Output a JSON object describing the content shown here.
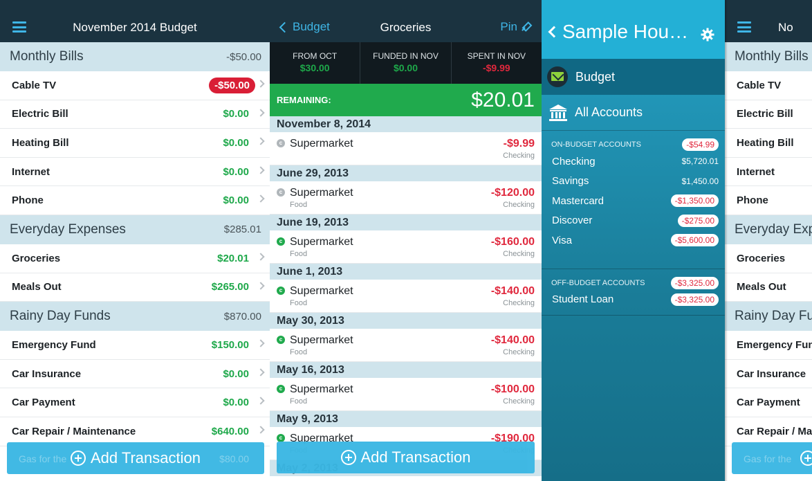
{
  "panel1": {
    "title": "November 2014 Budget",
    "groups": [
      {
        "name": "Monthly Bills",
        "amount": "-$50.00",
        "categories": [
          {
            "name": "Cable TV",
            "value": "-$50.00",
            "negative": true
          },
          {
            "name": "Electric Bill",
            "value": "$0.00"
          },
          {
            "name": "Heating Bill",
            "value": "$0.00"
          },
          {
            "name": "Internet",
            "value": "$0.00"
          },
          {
            "name": "Phone",
            "value": "$0.00"
          }
        ]
      },
      {
        "name": "Everyday Expenses",
        "amount": "$285.01",
        "categories": [
          {
            "name": "Groceries",
            "value": "$20.01"
          },
          {
            "name": "Meals Out",
            "value": "$265.00"
          }
        ]
      },
      {
        "name": "Rainy Day Funds",
        "amount": "$870.00",
        "categories": [
          {
            "name": "Emergency Fund",
            "value": "$150.00"
          },
          {
            "name": "Car Insurance",
            "value": "$0.00"
          },
          {
            "name": "Car Payment",
            "value": "$0.00"
          },
          {
            "name": "Car Repair / Maintenance",
            "value": "$640.00"
          }
        ]
      }
    ],
    "ghost_label": "Gas for the",
    "ghost_value": "$80.00",
    "add_label": "Add Transaction"
  },
  "panel2": {
    "back_label": "Budget",
    "title": "Groceries",
    "pin_label": "Pin",
    "summary": [
      {
        "label": "FROM OCT",
        "value": "$30.00",
        "color": "green"
      },
      {
        "label": "FUNDED IN NOV",
        "value": "$0.00",
        "color": "green"
      },
      {
        "label": "SPENT IN NOV",
        "value": "-$9.99",
        "color": "red"
      }
    ],
    "remaining_label": "REMAINING:",
    "remaining_value": "$20.01",
    "transactions": [
      {
        "date": "November 8, 2014",
        "payee": "Supermarket",
        "category": "",
        "amount": "-$9.99",
        "account": "Checking",
        "cleared": false
      },
      {
        "date": "June 29, 2013",
        "payee": "Supermarket",
        "category": "Food",
        "amount": "-$120.00",
        "account": "Checking",
        "cleared": false
      },
      {
        "date": "June 19, 2013",
        "payee": "Supermarket",
        "category": "Food",
        "amount": "-$160.00",
        "account": "Checking",
        "cleared": true
      },
      {
        "date": "June 1, 2013",
        "payee": "Supermarket",
        "category": "Food",
        "amount": "-$140.00",
        "account": "Checking",
        "cleared": true
      },
      {
        "date": "May 30, 2013",
        "payee": "Supermarket",
        "category": "Food",
        "amount": "-$140.00",
        "account": "Checking",
        "cleared": true
      },
      {
        "date": "May 16, 2013",
        "payee": "Supermarket",
        "category": "Food",
        "amount": "-$100.00",
        "account": "Checking",
        "cleared": true
      },
      {
        "date": "May 9, 2013",
        "payee": "Supermarket",
        "category": "Food",
        "amount": "-$190.00",
        "account": "Checking",
        "cleared": true
      }
    ],
    "last_date": "May 2, 2013",
    "dot_letter": "c",
    "add_label": "Add Transaction"
  },
  "panel3": {
    "title": "Sample Hou…",
    "menu_budget": "Budget",
    "menu_accounts": "All Accounts",
    "on_budget_label": "ON-BUDGET ACCOUNTS",
    "on_budget_total": "-$54.99",
    "on_budget_accounts": [
      {
        "name": "Checking",
        "value": "$5,720.01",
        "badge": false
      },
      {
        "name": "Savings",
        "value": "$1,450.00",
        "badge": false
      },
      {
        "name": "Mastercard",
        "value": "-$1,350.00",
        "badge": true
      },
      {
        "name": "Discover",
        "value": "-$275.00",
        "badge": true
      },
      {
        "name": "Visa",
        "value": "-$5,600.00",
        "badge": true
      }
    ],
    "off_budget_label": "OFF-BUDGET ACCOUNTS",
    "off_budget_total": "-$3,325.00",
    "off_budget_accounts": [
      {
        "name": "Student Loan",
        "value": "-$3,325.00",
        "badge": true
      }
    ]
  },
  "panel4": {
    "title": "No",
    "groups": [
      {
        "name": "Monthly Bills",
        "categories": [
          "Cable TV",
          "Electric Bill",
          "Heating Bill",
          "Internet",
          "Phone"
        ]
      },
      {
        "name": "Everyday Expe",
        "categories": [
          "Groceries",
          "Meals Out"
        ]
      },
      {
        "name": "Rainy Day Fur",
        "categories": [
          "Emergency Fun",
          "Car Insurance",
          "Car Payment",
          "Car Repair / Ma"
        ]
      }
    ],
    "ghost_label": "Gas for the"
  }
}
